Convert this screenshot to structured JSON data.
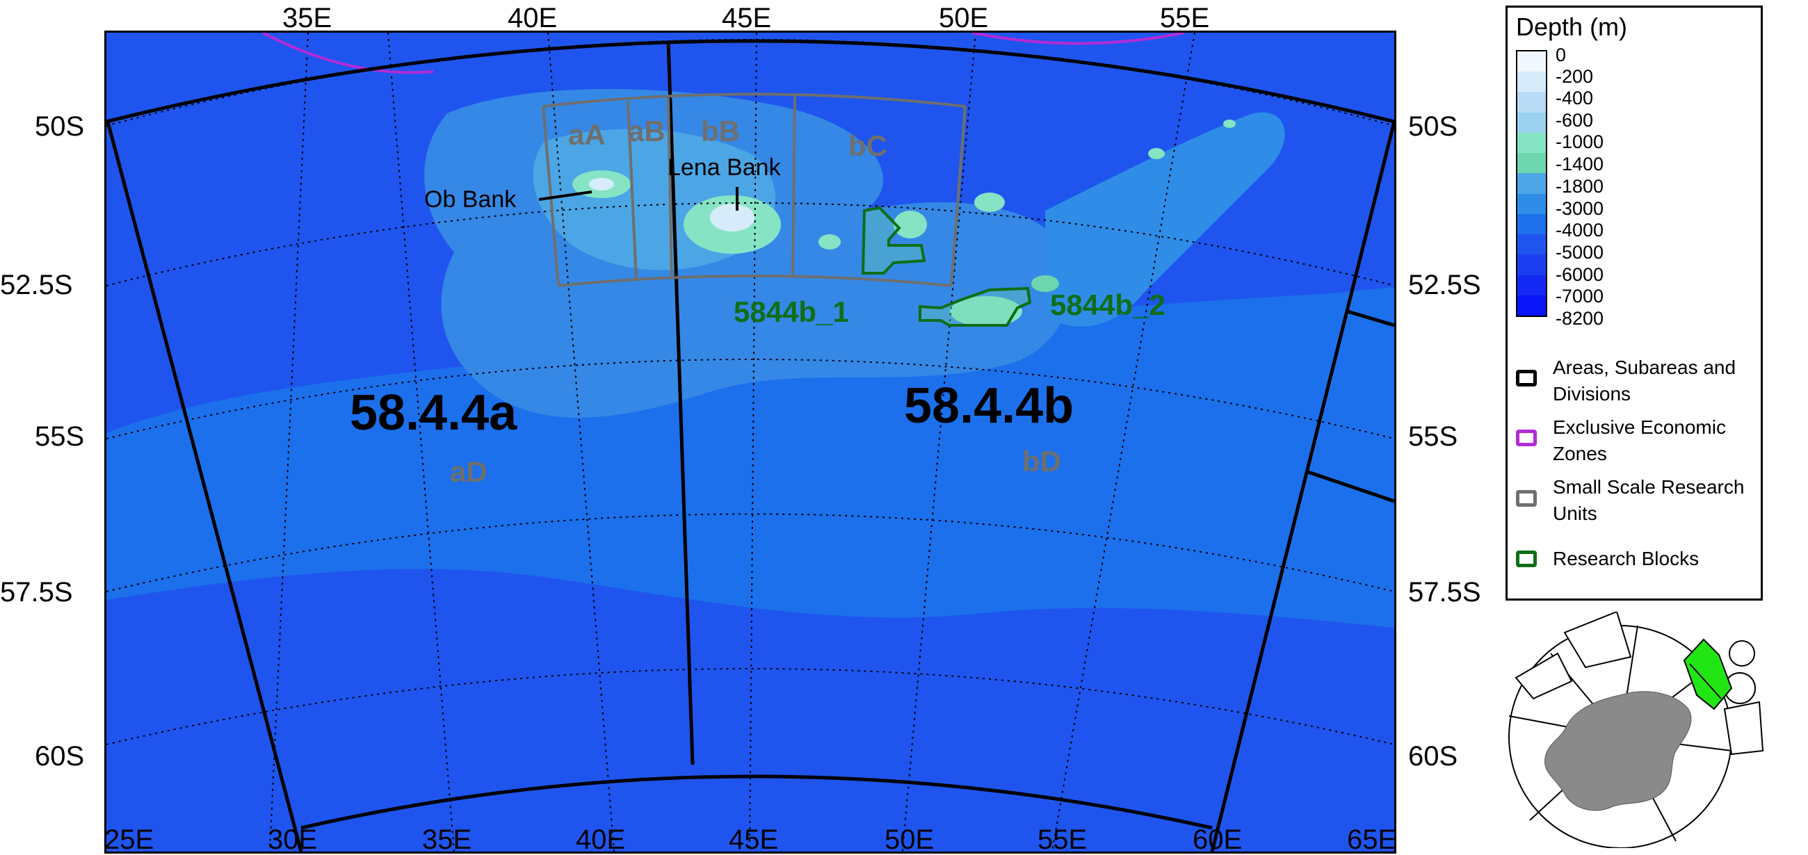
{
  "map": {
    "top_lon_labels": [
      "35E",
      "40E",
      "45E",
      "50E",
      "55E"
    ],
    "bottom_lon_labels": [
      "25E",
      "30E",
      "35E",
      "40E",
      "45E",
      "50E",
      "55E",
      "60E",
      "65E"
    ],
    "left_lat_labels": [
      "50S",
      "52.5S",
      "55S",
      "57.5S",
      "60S"
    ],
    "right_lat_labels": [
      "50S",
      "52.5S",
      "55S",
      "57.5S",
      "60S"
    ],
    "division_labels": [
      "58.4.4a",
      "58.4.4b"
    ],
    "ssru_labels": [
      "aA",
      "aB",
      "bB",
      "bC",
      "aD",
      "bD"
    ],
    "research_block_labels": [
      "5844b_1",
      "5844b_2"
    ],
    "place_labels": [
      "Ob Bank",
      "Lena Bank"
    ]
  },
  "legend": {
    "title": "Depth (m)",
    "depth_labels": [
      "0",
      "-200",
      "-400",
      "-600",
      "-1000",
      "-1400",
      "-1800",
      "-3000",
      "-4000",
      "-5000",
      "-6000",
      "-7000",
      "-8200"
    ],
    "depth_colors": [
      "#f2f8ff",
      "#d7ecfb",
      "#b9ddf6",
      "#9ad2f0",
      "#86e4c5",
      "#6dd6ae",
      "#4ca6e6",
      "#2f8de8",
      "#1c70ec",
      "#1f55ee",
      "#1b3ff0",
      "#1329f3",
      "#0a14f7"
    ],
    "entries": [
      {
        "label": "Areas, Subareas and Divisions",
        "color": "#000000"
      },
      {
        "label": "Exclusive Economic Zones",
        "color": "#b22bd6"
      },
      {
        "label": "Small Scale Research Units",
        "color": "#6f6f6f"
      },
      {
        "label": "Research Blocks",
        "color": "#0f6e16"
      }
    ]
  },
  "colors": {
    "ocean_deep": "#1f55ee",
    "ocean_mid": "#1c70ec",
    "ocean_shallow": "#3588e6",
    "plateau": "#4ca6e6",
    "bank_shallow": "#86e4c5",
    "division_line": "#000000",
    "eez_line": "#b22bd6",
    "ssru_line": "#6f6f6f",
    "research_block_line": "#0f6e16",
    "inset_highlight": "#21e614",
    "inset_land": "#8a8a8a"
  }
}
